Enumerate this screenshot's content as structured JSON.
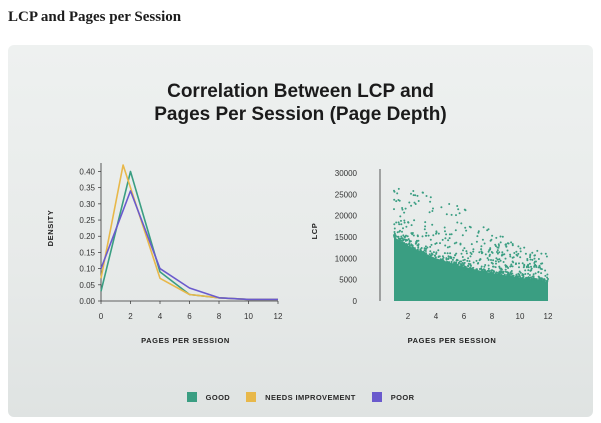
{
  "page": {
    "heading": "LCP and Pages per Session",
    "title_line1": "Correlation Between LCP and",
    "title_line2": "Pages Per Session (Page Depth)"
  },
  "colors": {
    "good": "#3a9e82",
    "needs_improvement": "#e8b84a",
    "poor": "#6a5acd"
  },
  "chart_data": [
    {
      "type": "line",
      "xlabel": "PAGES PER SESSION",
      "ylabel": "DENSITY",
      "xlim": [
        0,
        12
      ],
      "ylim": [
        0,
        0.42
      ],
      "xticks": [
        "0",
        "2",
        "4",
        "6",
        "8",
        "10",
        "12"
      ],
      "yticks": [
        "0.00",
        "0.05",
        "0.10",
        "0.15",
        "0.20",
        "0.25",
        "0.30",
        "0.35",
        "0.40"
      ],
      "series": [
        {
          "name": "GOOD",
          "color_key": "good",
          "x": [
            0,
            2,
            4,
            6,
            8,
            10,
            12
          ],
          "values": [
            0.03,
            0.4,
            0.09,
            0.02,
            0.01,
            0.005,
            0.005
          ]
        },
        {
          "name": "NEEDS IMPROVEMENT",
          "color_key": "needs_improvement",
          "x": [
            0,
            1.5,
            4,
            6,
            8,
            10,
            12
          ],
          "values": [
            0.07,
            0.42,
            0.07,
            0.02,
            0.01,
            0.005,
            0.005
          ]
        },
        {
          "name": "POOR",
          "color_key": "poor",
          "x": [
            0,
            2,
            4,
            6,
            8,
            10,
            12
          ],
          "values": [
            0.1,
            0.34,
            0.1,
            0.04,
            0.01,
            0.005,
            0.005
          ]
        }
      ]
    },
    {
      "type": "scatter",
      "xlabel": "PAGES PER SESSION",
      "ylabel": "LCP",
      "xlim": [
        0,
        12
      ],
      "ylim": [
        0,
        30000
      ],
      "xticks": [
        "2",
        "4",
        "6",
        "8",
        "10",
        "12"
      ],
      "yticks": [
        "0",
        "5000",
        "10000",
        "15000",
        "20000",
        "25000",
        "30000"
      ],
      "series": [
        {
          "name": "GOOD",
          "color_key": "good",
          "dense_upper": {
            "x": [
              1,
              2,
              4,
              6,
              8,
              10,
              12
            ],
            "values": [
              15000,
              13000,
              10000,
              8000,
              6500,
              5500,
              4500
            ]
          },
          "outlier_upper": {
            "x": [
              1,
              2,
              4,
              6,
              8,
              10,
              12
            ],
            "values": [
              28000,
              28000,
              25000,
              22000,
              17000,
              13000,
              11000
            ]
          }
        }
      ]
    }
  ],
  "legend": [
    {
      "label": "GOOD",
      "color_key": "good"
    },
    {
      "label": "NEEDS IMPROVEMENT",
      "color_key": "needs_improvement"
    },
    {
      "label": "POOR",
      "color_key": "poor"
    }
  ]
}
